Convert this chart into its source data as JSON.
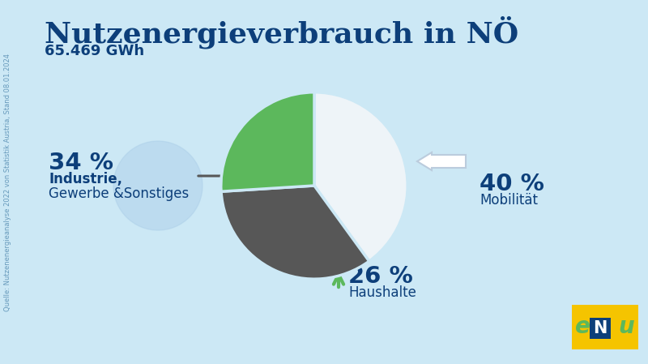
{
  "title": "Nutzenergieverbrauch in NÖ",
  "subtitle": "65.469 GWh",
  "background_color": "#cce8f5",
  "title_color": "#0d3f7a",
  "pie_values": [
    40,
    34,
    26
  ],
  "pie_colors": [
    "#eef4f8",
    "#575757",
    "#5cb85c"
  ],
  "labels": [
    "Mobilität",
    "Industrie,\nGewerbe &Sonstiges",
    "Haushalte"
  ],
  "label_pcts": [
    "40 %",
    "34 %",
    "26 %"
  ],
  "label_color": "#0d3f7a",
  "green_color": "#5cb85c",
  "gray_color": "#575757",
  "source_text": "Quelle: Nutzenenergieanalyse 2022 von Statistik Austria, Stand 08.01.2024",
  "enu_bg": "#f5c400",
  "enu_blue": "#0d3f7a",
  "enu_green": "#5cb85c"
}
